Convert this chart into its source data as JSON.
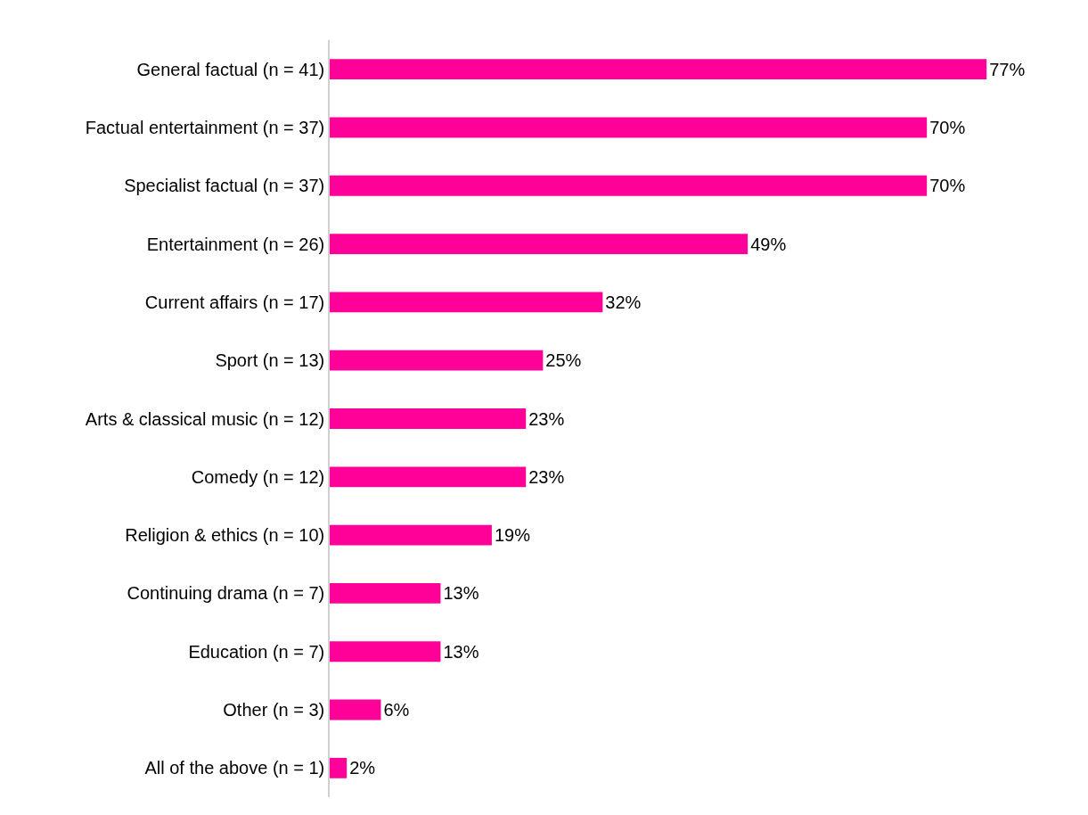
{
  "chart_data": {
    "type": "bar",
    "orientation": "horizontal",
    "categories": [
      "General factual (n = 41)",
      "Factual entertainment (n = 37)",
      "Specialist factual (n = 37)",
      "Entertainment (n = 26)",
      "Current affairs (n = 17)",
      "Sport (n = 13)",
      "Arts & classical music (n = 12)",
      "Comedy (n = 12)",
      "Religion & ethics (n = 10)",
      "Continuing drama (n = 7)",
      "Education (n = 7)",
      "Other (n = 3)",
      "All of the above (n = 1)"
    ],
    "values": [
      77,
      70,
      70,
      49,
      32,
      25,
      23,
      23,
      19,
      13,
      13,
      6,
      2
    ],
    "value_labels": [
      "77%",
      "70%",
      "70%",
      "49%",
      "32%",
      "25%",
      "23%",
      "23%",
      "19%",
      "13%",
      "13%",
      "6%",
      "2%"
    ],
    "color": "#ff0099",
    "tick_labels": "y",
    "grid": false
  }
}
